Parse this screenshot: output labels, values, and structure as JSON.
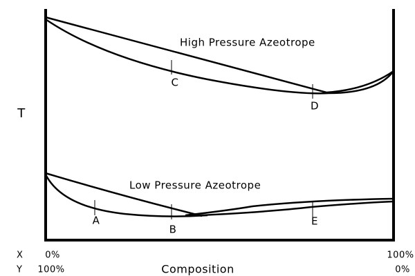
{
  "labels": {
    "high_pressure": "High Pressure Azeotrope",
    "low_pressure": "Low Pressure Azeotrope",
    "y_axis": "T",
    "x_axis": "Composition"
  },
  "points": {
    "a": "A",
    "b": "B",
    "c": "C",
    "d": "D",
    "e": "E"
  },
  "scale": {
    "x_name": "X",
    "y_name": "Y",
    "x_left": "0%",
    "y_left": "100%",
    "x_right": "100%",
    "y_right": "0%"
  }
}
